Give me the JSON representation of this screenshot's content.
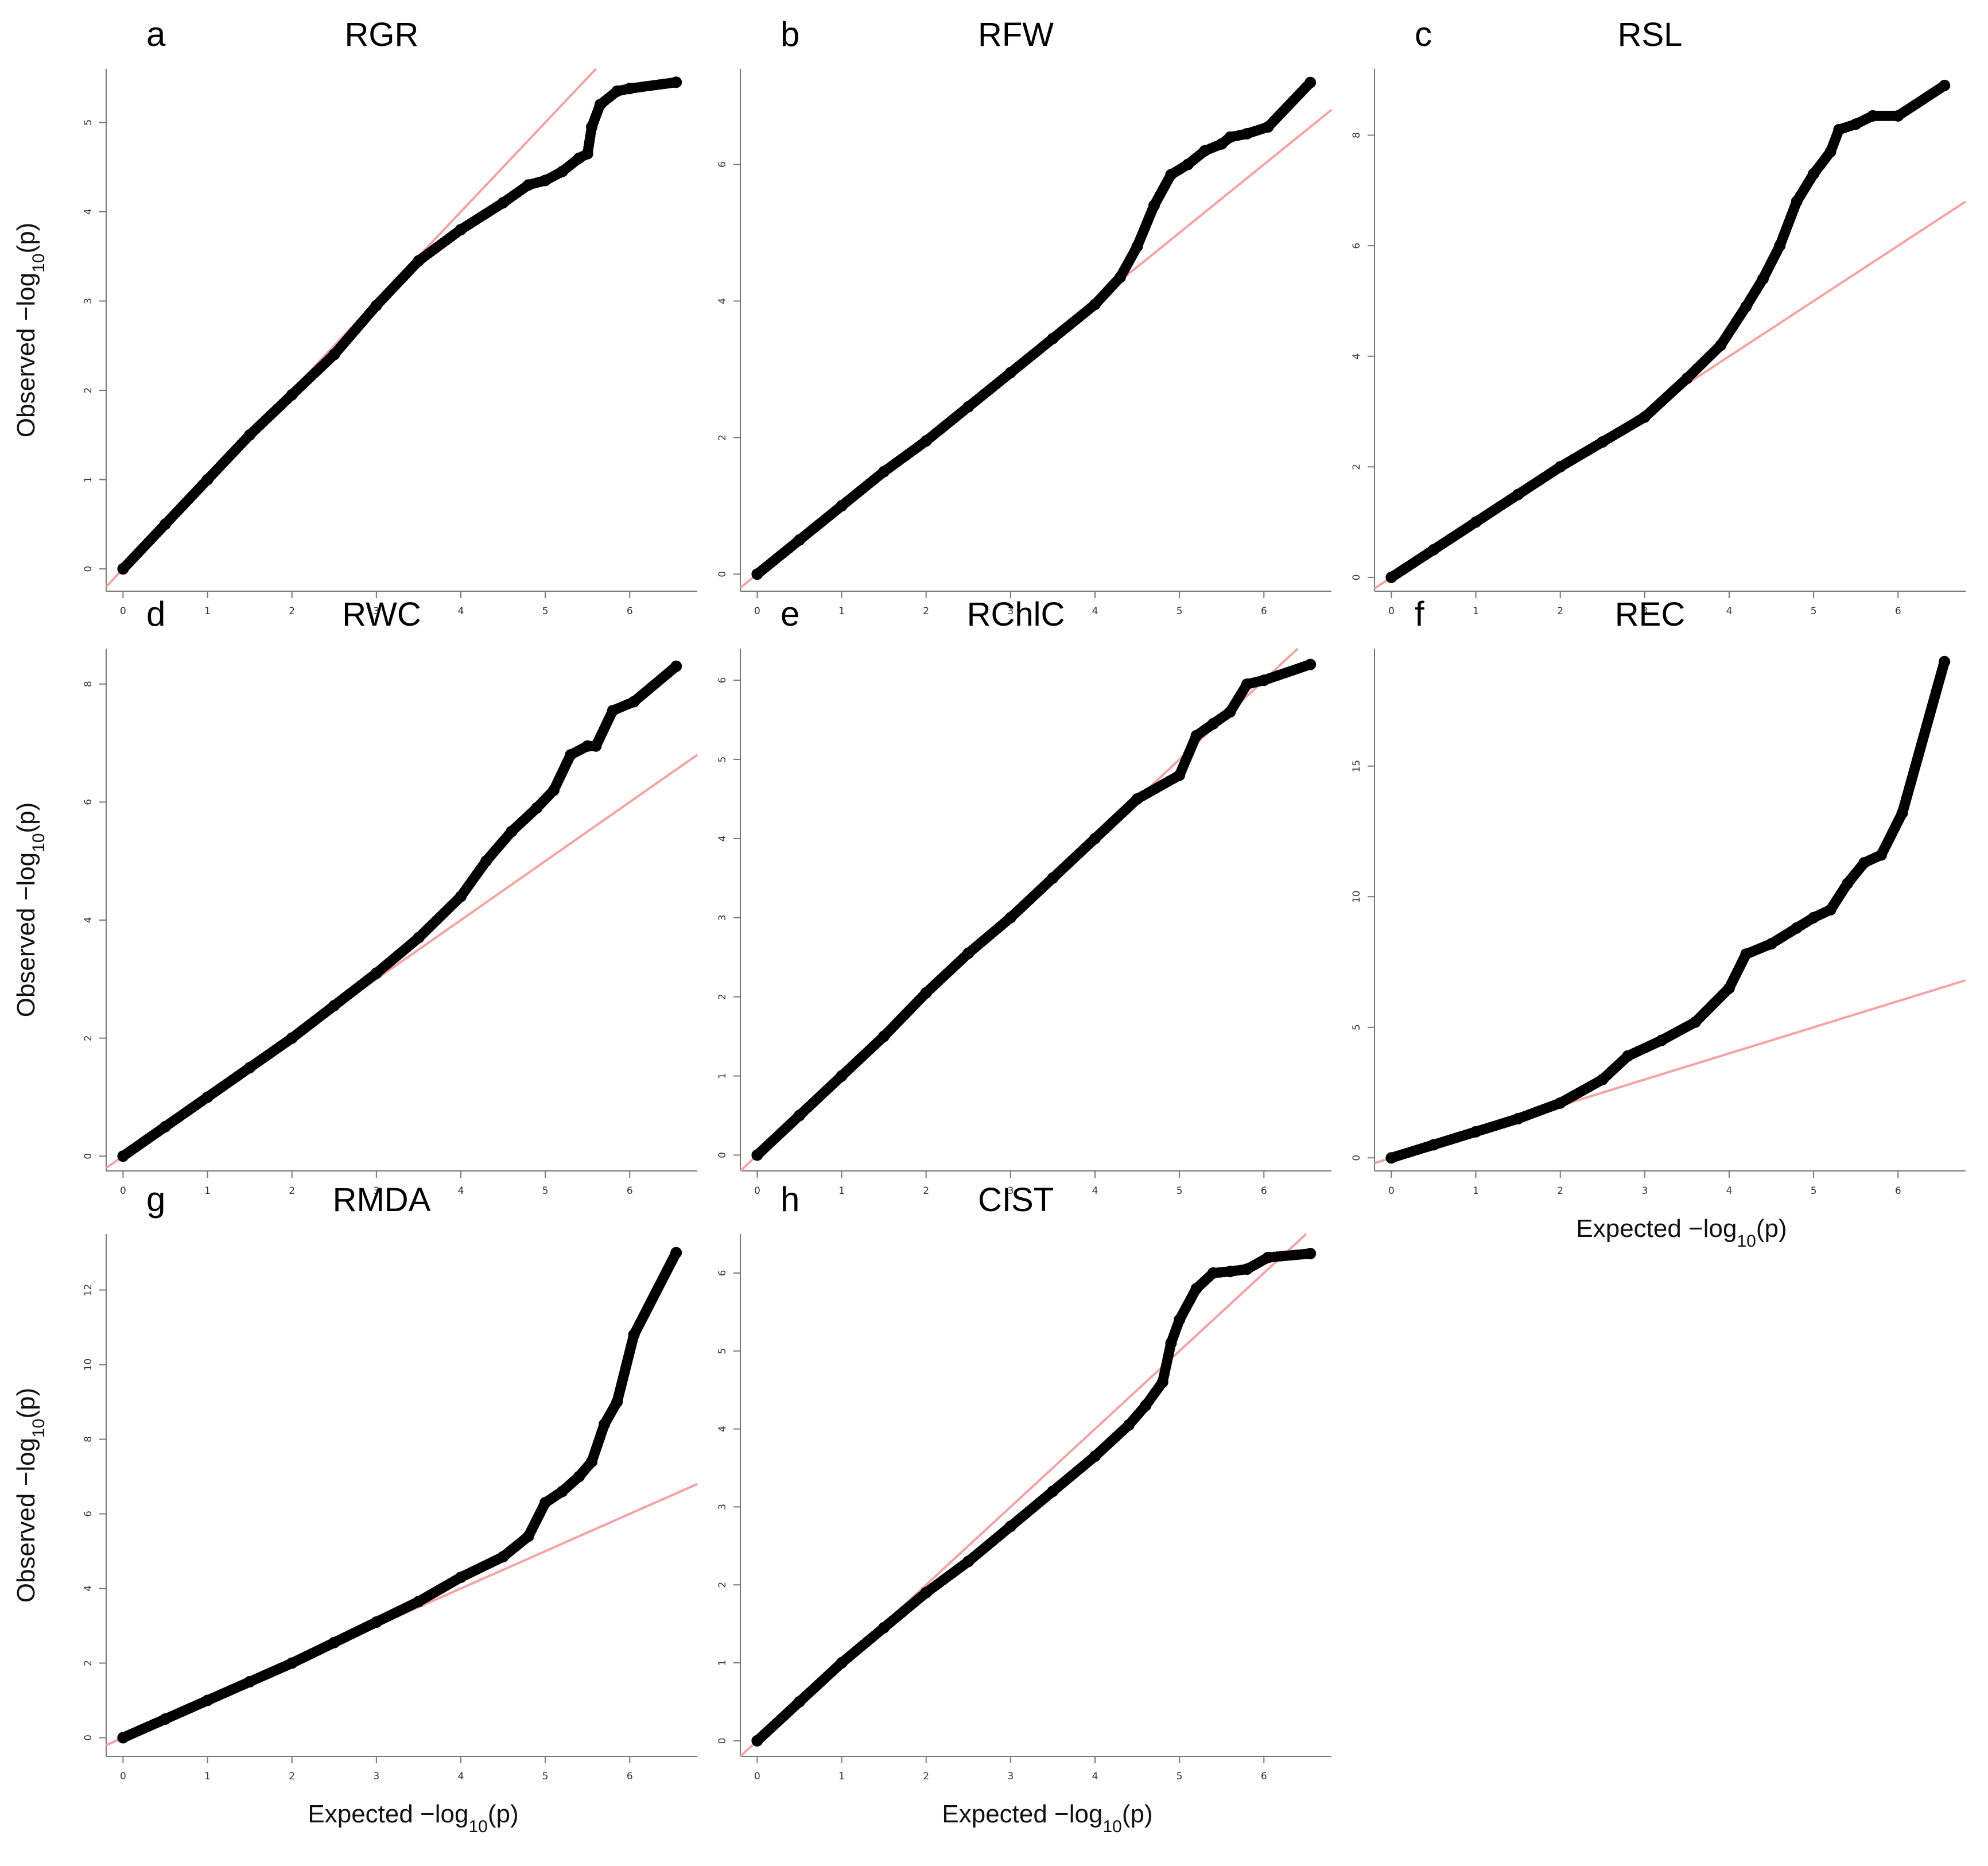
{
  "figure": {
    "axis_label_x": {
      "pre": "Expected −log",
      "sub": "10",
      "post": "(p)"
    },
    "axis_label_y": {
      "pre": "Observed −log",
      "sub": "10",
      "post": "(p)"
    }
  },
  "chart_data": [
    {
      "type": "scatter",
      "panel": "a",
      "title": "RGR",
      "xticks": [
        0,
        1,
        2,
        3,
        4,
        5,
        6
      ],
      "yticks": [
        0,
        1,
        2,
        3,
        4,
        5
      ],
      "xlim": [
        -0.2,
        6.8
      ],
      "ylim": [
        -0.25,
        5.6
      ],
      "reference_line": "y = x",
      "series": [
        {
          "x": [
            0,
            0.5,
            1,
            1.5,
            2,
            2.5,
            3,
            3.5,
            4,
            4.5,
            4.8,
            5.0,
            5.2,
            5.4,
            5.5,
            5.55,
            5.65,
            5.85,
            6.0,
            6.55
          ],
          "y": [
            0,
            0.5,
            1,
            1.5,
            1.95,
            2.4,
            2.95,
            3.45,
            3.8,
            4.1,
            4.3,
            4.35,
            4.45,
            4.6,
            4.65,
            4.95,
            5.2,
            5.35,
            5.38,
            5.45
          ]
        }
      ]
    },
    {
      "type": "scatter",
      "panel": "b",
      "title": "RFW",
      "xticks": [
        0,
        1,
        2,
        3,
        4,
        5,
        6
      ],
      "yticks": [
        0,
        2,
        4,
        6
      ],
      "xlim": [
        -0.2,
        6.8
      ],
      "ylim": [
        -0.25,
        7.4
      ],
      "reference_line": "y = x",
      "series": [
        {
          "x": [
            0,
            0.5,
            1,
            1.5,
            2,
            2.5,
            3,
            3.5,
            4,
            4.3,
            4.5,
            4.7,
            4.9,
            5.1,
            5.3,
            5.5,
            5.6,
            5.8,
            6.05,
            6.55
          ],
          "y": [
            0,
            0.5,
            1,
            1.5,
            1.95,
            2.45,
            2.95,
            3.45,
            3.95,
            4.35,
            4.8,
            5.4,
            5.85,
            6.0,
            6.2,
            6.3,
            6.4,
            6.45,
            6.55,
            7.2
          ]
        }
      ]
    },
    {
      "type": "scatter",
      "panel": "c",
      "title": "RSL",
      "xticks": [
        0,
        1,
        2,
        3,
        4,
        5,
        6
      ],
      "yticks": [
        0,
        2,
        4,
        6,
        8
      ],
      "xlim": [
        -0.2,
        6.8
      ],
      "ylim": [
        -0.25,
        9.2
      ],
      "reference_line": "y = x",
      "series": [
        {
          "x": [
            0,
            0.5,
            1,
            1.5,
            2,
            2.5,
            3,
            3.5,
            3.9,
            4.2,
            4.4,
            4.6,
            4.8,
            5.0,
            5.2,
            5.3,
            5.5,
            5.7,
            6.0,
            6.55
          ],
          "y": [
            0,
            0.5,
            1,
            1.5,
            2.0,
            2.45,
            2.9,
            3.6,
            4.2,
            4.9,
            5.4,
            6.0,
            6.8,
            7.3,
            7.7,
            8.1,
            8.2,
            8.35,
            8.35,
            8.9
          ]
        }
      ]
    },
    {
      "type": "scatter",
      "panel": "d",
      "title": "RWC",
      "xticks": [
        0,
        1,
        2,
        3,
        4,
        5,
        6
      ],
      "yticks": [
        0,
        2,
        4,
        6,
        8
      ],
      "xlim": [
        -0.2,
        6.8
      ],
      "ylim": [
        -0.25,
        8.6
      ],
      "reference_line": "y = x",
      "series": [
        {
          "x": [
            0,
            0.5,
            1,
            1.5,
            2,
            2.5,
            3,
            3.5,
            4,
            4.3,
            4.6,
            4.9,
            5.1,
            5.3,
            5.5,
            5.6,
            5.8,
            6.05,
            6.55
          ],
          "y": [
            0,
            0.5,
            1,
            1.5,
            2.0,
            2.55,
            3.1,
            3.7,
            4.4,
            5.0,
            5.5,
            5.9,
            6.2,
            6.8,
            6.95,
            6.95,
            7.55,
            7.7,
            8.3
          ]
        }
      ]
    },
    {
      "type": "scatter",
      "panel": "e",
      "title": "RChlC",
      "xticks": [
        0,
        1,
        2,
        3,
        4,
        5,
        6
      ],
      "yticks": [
        0,
        1,
        2,
        3,
        4,
        5,
        6
      ],
      "xlim": [
        -0.2,
        6.8
      ],
      "ylim": [
        -0.2,
        6.4
      ],
      "reference_line": "y = x",
      "series": [
        {
          "x": [
            0,
            0.5,
            1,
            1.5,
            2,
            2.5,
            3,
            3.5,
            4,
            4.5,
            5.0,
            5.2,
            5.4,
            5.6,
            5.8,
            6.0,
            6.55
          ],
          "y": [
            0,
            0.5,
            1,
            1.5,
            2.05,
            2.55,
            3.0,
            3.5,
            4.0,
            4.5,
            4.8,
            5.3,
            5.45,
            5.6,
            5.95,
            6.0,
            6.2
          ]
        }
      ]
    },
    {
      "type": "scatter",
      "panel": "f",
      "title": "REC",
      "xticks": [
        0,
        1,
        2,
        3,
        4,
        5,
        6
      ],
      "yticks": [
        0,
        5,
        10,
        15
      ],
      "xlim": [
        -0.2,
        6.8
      ],
      "ylim": [
        -0.5,
        19.5
      ],
      "reference_line": "y = x",
      "series": [
        {
          "x": [
            0,
            0.5,
            1,
            1.5,
            2,
            2.5,
            2.8,
            3.2,
            3.6,
            4.0,
            4.2,
            4.5,
            4.8,
            5.0,
            5.2,
            5.4,
            5.6,
            5.8,
            6.05,
            6.55
          ],
          "y": [
            0,
            0.5,
            1,
            1.5,
            2.1,
            3.0,
            3.9,
            4.5,
            5.2,
            6.5,
            7.8,
            8.2,
            8.8,
            9.2,
            9.5,
            10.5,
            11.3,
            11.6,
            13.2,
            19.0
          ]
        }
      ]
    },
    {
      "type": "scatter",
      "panel": "g",
      "title": "RMDA",
      "xticks": [
        0,
        1,
        2,
        3,
        4,
        5,
        6
      ],
      "yticks": [
        0,
        2,
        4,
        6,
        8,
        10,
        12
      ],
      "xlim": [
        -0.2,
        6.8
      ],
      "ylim": [
        -0.5,
        13.5
      ],
      "reference_line": "y = x",
      "series": [
        {
          "x": [
            0,
            0.5,
            1,
            1.5,
            2,
            2.5,
            3,
            3.5,
            4,
            4.5,
            4.8,
            5.0,
            5.2,
            5.4,
            5.55,
            5.7,
            5.85,
            6.05,
            6.55
          ],
          "y": [
            0,
            0.5,
            1,
            1.5,
            2.0,
            2.55,
            3.1,
            3.65,
            4.3,
            4.85,
            5.4,
            6.3,
            6.6,
            7.0,
            7.4,
            8.4,
            9.0,
            10.8,
            13.0
          ]
        }
      ]
    },
    {
      "type": "scatter",
      "panel": "h",
      "title": "CIST",
      "xticks": [
        0,
        1,
        2,
        3,
        4,
        5,
        6
      ],
      "yticks": [
        0,
        1,
        2,
        3,
        4,
        5,
        6
      ],
      "xlim": [
        -0.2,
        6.8
      ],
      "ylim": [
        -0.2,
        6.5
      ],
      "reference_line": "y = x",
      "series": [
        {
          "x": [
            0,
            0.5,
            1,
            1.5,
            2,
            2.5,
            3,
            3.5,
            4,
            4.4,
            4.6,
            4.8,
            4.9,
            5.0,
            5.2,
            5.4,
            5.6,
            5.8,
            6.05,
            6.55
          ],
          "y": [
            0,
            0.5,
            1,
            1.45,
            1.9,
            2.3,
            2.75,
            3.2,
            3.65,
            4.05,
            4.3,
            4.6,
            5.1,
            5.4,
            5.8,
            6.0,
            6.02,
            6.05,
            6.2,
            6.25
          ]
        }
      ]
    }
  ]
}
